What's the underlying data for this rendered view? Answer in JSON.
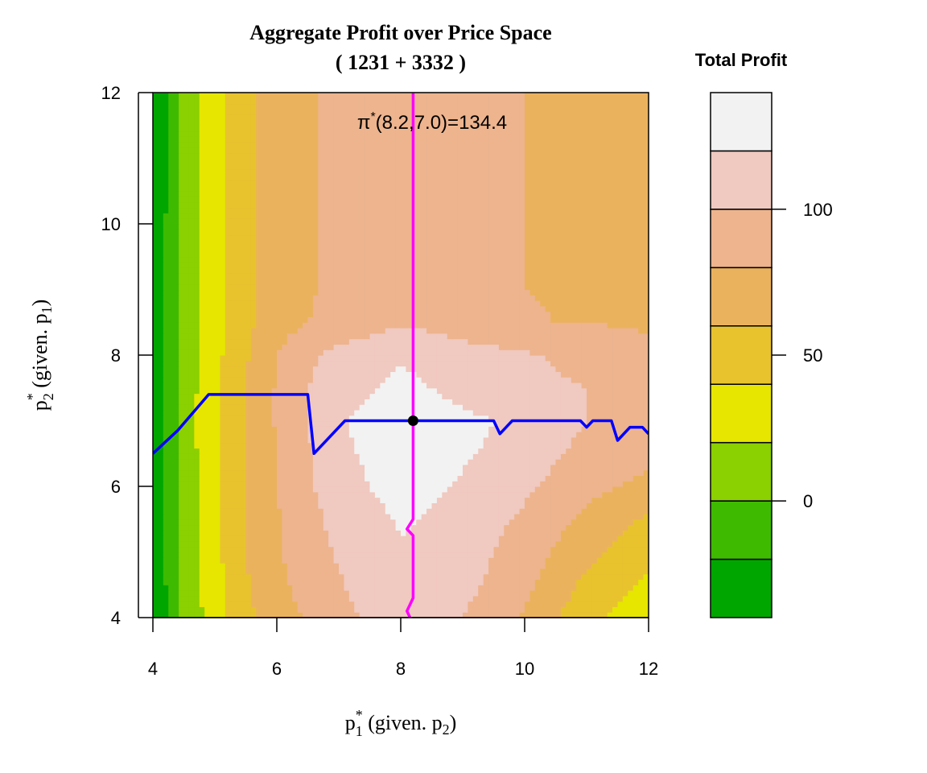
{
  "chart_data": {
    "type": "heatmap",
    "title": "Aggregate Profit over Price Space",
    "subtitle": "( 1231 + 3332 )",
    "xlabel": {
      "base": "p",
      "sub": "1",
      "sup": "*",
      "rest_pre": " (given. p",
      "rest_sub": "2",
      "rest_post": ")"
    },
    "ylabel": {
      "base": "p",
      "sub": "2",
      "sup": "*",
      "rest_pre": " (given. p",
      "rest_sub": "1",
      "rest_post": ")"
    },
    "xlim": [
      4,
      12
    ],
    "ylim": [
      4,
      12
    ],
    "x_ticks": [
      "4",
      "6",
      "8",
      "10",
      "12"
    ],
    "y_ticks": [
      "4",
      "6",
      "8",
      "10",
      "12"
    ],
    "legend": {
      "title": "Total Profit",
      "placement": "right",
      "ticks": [
        "0",
        "50",
        "100"
      ],
      "tick_values": [
        0,
        50,
        100
      ],
      "range": [
        -40,
        140
      ],
      "breaks": [
        -40,
        -20,
        0,
        20,
        40,
        60,
        80,
        100,
        120,
        140
      ],
      "colors": [
        "#00A600",
        "#3EBB00",
        "#8BD000",
        "#E6E600",
        "#E8C32E",
        "#EBB25E",
        "#EDB48E",
        "#F0C9C0",
        "#F2F2F2"
      ]
    },
    "optimum": {
      "label_base": "π",
      "label_sup": "*",
      "label_rest": "(8.2,7.0)=134.4",
      "x": 8.2,
      "y": 7.0,
      "value": 134.4
    },
    "series": [
      {
        "color": "#0000FF",
        "points": [
          [
            4.0,
            6.5
          ],
          [
            4.4,
            6.85
          ],
          [
            4.9,
            7.4
          ],
          [
            6.5,
            7.4
          ],
          [
            6.6,
            6.5
          ],
          [
            7.1,
            7.0
          ],
          [
            9.5,
            7.0
          ],
          [
            9.6,
            6.8
          ],
          [
            9.8,
            7.0
          ],
          [
            10.9,
            7.0
          ],
          [
            11.0,
            6.9
          ],
          [
            11.1,
            7.0
          ],
          [
            11.4,
            7.0
          ],
          [
            11.5,
            6.7
          ],
          [
            11.7,
            6.9
          ],
          [
            11.9,
            6.9
          ],
          [
            12.0,
            6.8
          ]
        ]
      },
      {
        "color": "#FF00FF",
        "points": [
          [
            8.15,
            4.0
          ],
          [
            8.1,
            4.1
          ],
          [
            8.2,
            4.3
          ],
          [
            8.2,
            5.25
          ],
          [
            8.1,
            5.35
          ],
          [
            8.2,
            5.5
          ],
          [
            8.2,
            12.0
          ]
        ]
      }
    ],
    "profit_grid": {
      "x": [
        4,
        4.5,
        5,
        5.5,
        6,
        6.5,
        7,
        7.5,
        8,
        8.5,
        9,
        9.5,
        10,
        10.5,
        11,
        11.5,
        12
      ],
      "y": [
        4,
        4.5,
        5,
        5.5,
        6,
        6.5,
        7,
        7.5,
        8,
        8.5,
        9,
        9.5,
        10,
        10.5,
        11,
        11.5,
        12
      ],
      "z": [
        [
          -40,
          5,
          30,
          55,
          70,
          82,
          93,
          103,
          110,
          105,
          100,
          90,
          78,
          62,
          45,
          35,
          25
        ],
        [
          -38,
          5,
          32,
          58,
          75,
          88,
          98,
          108,
          115,
          112,
          106,
          96,
          85,
          70,
          55,
          45,
          35
        ],
        [
          -36,
          6,
          34,
          60,
          77,
          92,
          102,
          112,
          118,
          116,
          110,
          100,
          90,
          78,
          65,
          55,
          45
        ],
        [
          -35,
          7,
          35,
          60,
          78,
          95,
          105,
          115,
          122,
          118,
          114,
          105,
          96,
          86,
          75,
          65,
          58
        ],
        [
          -35,
          8,
          35,
          60,
          80,
          97,
          110,
          120,
          126,
          122,
          118,
          112,
          104,
          95,
          87,
          80,
          75
        ],
        [
          -33,
          9,
          35,
          60,
          80,
          98,
          114,
          124,
          130,
          126,
          122,
          118,
          110,
          102,
          95,
          90,
          86
        ],
        [
          -30,
          10,
          36,
          62,
          82,
          100,
          118,
          126,
          134.4,
          128,
          124,
          120,
          114,
          106,
          100,
          96,
          92
        ],
        [
          -32,
          9,
          35,
          60,
          82,
          100,
          112,
          118,
          124,
          120,
          114,
          110,
          106,
          102,
          100,
          96,
          92
        ],
        [
          -34,
          8,
          34,
          58,
          80,
          96,
          106,
          112,
          118,
          115,
          110,
          106,
          102,
          98,
          96,
          92,
          88
        ],
        [
          -36,
          7,
          33,
          55,
          72,
          80,
          86,
          92,
          98,
          94,
          88,
          84,
          82,
          80,
          80,
          78,
          76
        ],
        [
          -37,
          6,
          32,
          54,
          70,
          78,
          84,
          90,
          96,
          92,
          86,
          82,
          80,
          78,
          78,
          76,
          74
        ],
        [
          -38,
          6,
          32,
          54,
          70,
          78,
          84,
          90,
          96,
          92,
          86,
          82,
          80,
          78,
          78,
          75,
          72
        ],
        [
          -38,
          6,
          32,
          54,
          70,
          78,
          84,
          90,
          96,
          92,
          86,
          82,
          80,
          78,
          76,
          74,
          70
        ],
        [
          -39,
          5,
          32,
          54,
          70,
          78,
          84,
          90,
          96,
          92,
          86,
          82,
          80,
          78,
          76,
          72,
          68
        ],
        [
          -39,
          5,
          32,
          54,
          70,
          78,
          84,
          90,
          96,
          92,
          86,
          82,
          80,
          76,
          74,
          70,
          66
        ],
        [
          -40,
          5,
          32,
          54,
          70,
          78,
          84,
          90,
          96,
          92,
          86,
          82,
          80,
          76,
          72,
          68,
          64
        ],
        [
          -40,
          5,
          32,
          54,
          70,
          78,
          84,
          90,
          96,
          92,
          86,
          82,
          80,
          76,
          72,
          68,
          62
        ]
      ]
    }
  }
}
